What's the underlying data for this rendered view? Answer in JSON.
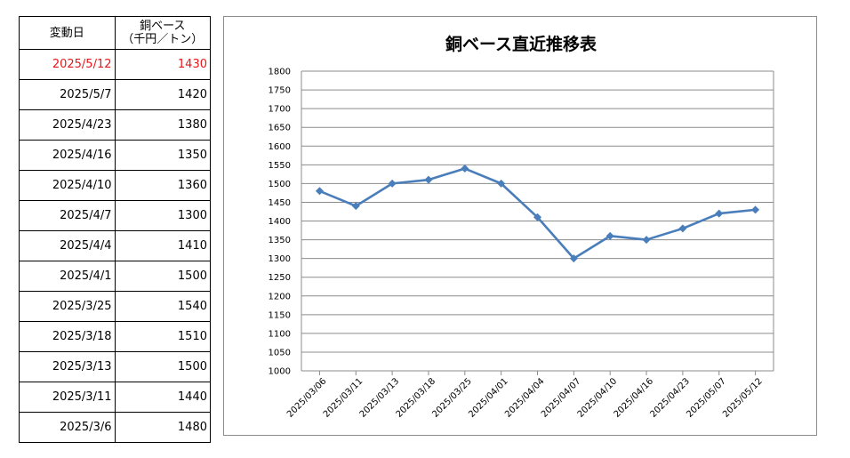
{
  "table": {
    "header_date": "変動日",
    "header_value_line1": "銅ベース",
    "header_value_line2": "（千円／トン）",
    "rows": [
      {
        "date": "2025/5/12",
        "value": "1430",
        "highlight": true
      },
      {
        "date": "2025/5/7",
        "value": "1420"
      },
      {
        "date": "2025/4/23",
        "value": "1380"
      },
      {
        "date": "2025/4/16",
        "value": "1350"
      },
      {
        "date": "2025/4/10",
        "value": "1360"
      },
      {
        "date": "2025/4/7",
        "value": "1300"
      },
      {
        "date": "2025/4/4",
        "value": "1410"
      },
      {
        "date": "2025/4/1",
        "value": "1500"
      },
      {
        "date": "2025/3/25",
        "value": "1540"
      },
      {
        "date": "2025/3/18",
        "value": "1510"
      },
      {
        "date": "2025/3/13",
        "value": "1500"
      },
      {
        "date": "2025/3/11",
        "value": "1440"
      },
      {
        "date": "2025/3/6",
        "value": "1480"
      }
    ],
    "highlight_color": "#e8161a"
  },
  "chart_data": {
    "type": "line",
    "title": "銅ベース直近推移表",
    "xlabel": "",
    "ylabel": "",
    "categories": [
      "2025/03/06",
      "2025/03/11",
      "2025/03/13",
      "2025/03/18",
      "2025/03/25",
      "2025/04/01",
      "2025/04/04",
      "2025/04/07",
      "2025/04/10",
      "2025/04/16",
      "2025/04/23",
      "2025/05/07",
      "2025/05/12"
    ],
    "series": [
      {
        "values": [
          1480,
          1440,
          1500,
          1510,
          1540,
          1500,
          1410,
          1300,
          1360,
          1350,
          1380,
          1420,
          1430
        ],
        "color": "#4a7ebb",
        "marker": "diamond"
      }
    ],
    "ylim": [
      1000,
      1800
    ],
    "yticks": [
      "1800",
      "1750",
      "1700",
      "1650",
      "1600",
      "1550",
      "1500",
      "1450",
      "1400",
      "1350",
      "1300",
      "1250",
      "1200",
      "1150",
      "1100",
      "1050",
      "1000"
    ],
    "grid": true,
    "legend": "none"
  }
}
